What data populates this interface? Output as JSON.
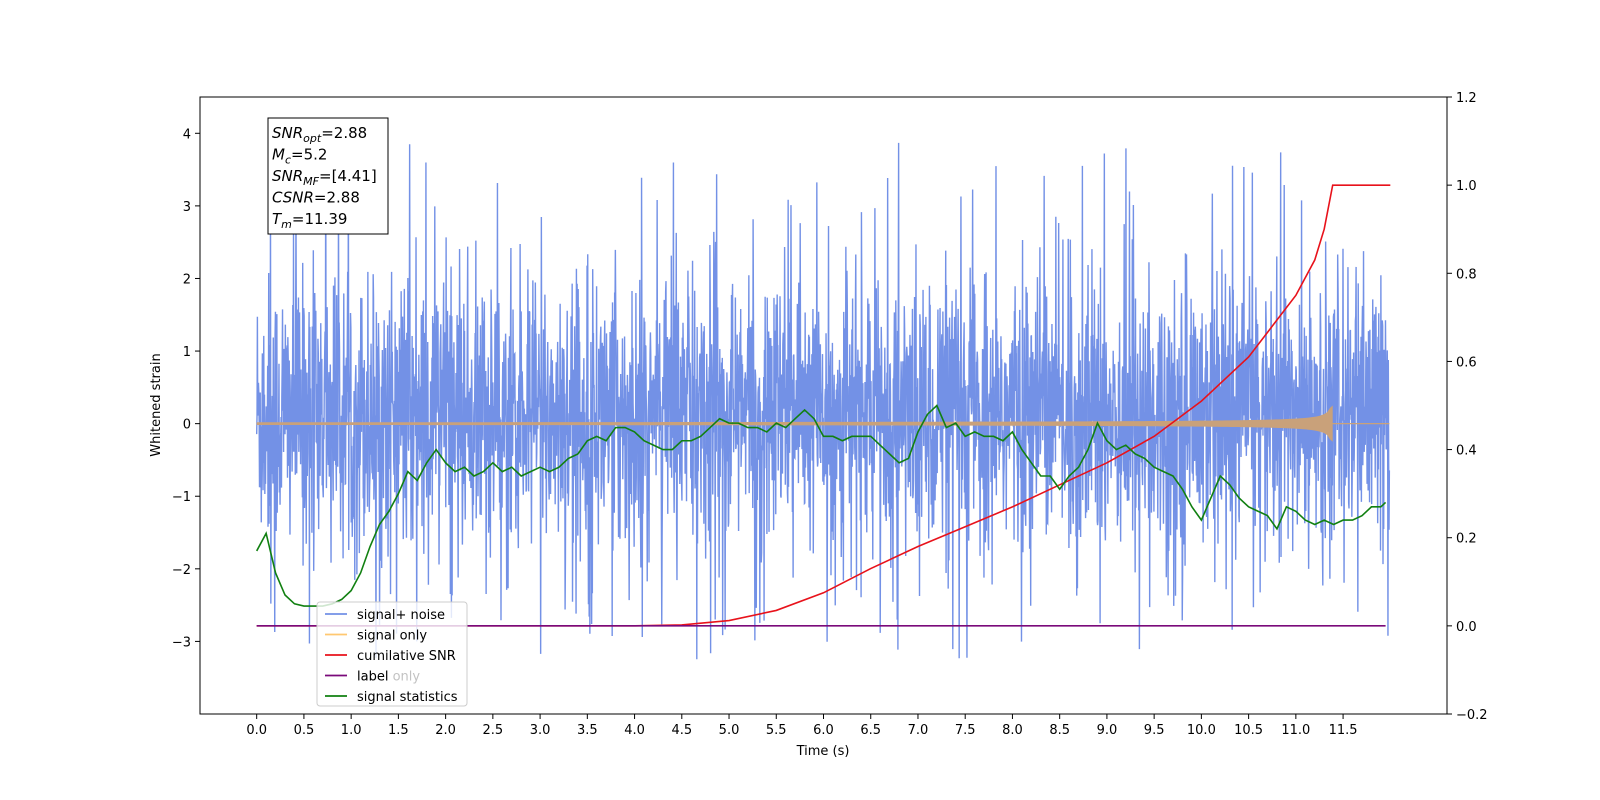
{
  "chart_data": {
    "type": "line",
    "xlabel": "Time (s)",
    "ylabel": "Whitened strain",
    "xlim": [
      -0.6,
      12.6
    ],
    "ylim": [
      -4.0,
      4.5
    ],
    "y2lim": [
      -0.2,
      1.2
    ],
    "x_ticks": [
      "0.0",
      "0.5",
      "1.0",
      "1.5",
      "2.0",
      "2.5",
      "3.0",
      "3.5",
      "4.0",
      "4.5",
      "5.0",
      "5.5",
      "6.0",
      "6.5",
      "7.0",
      "7.5",
      "8.0",
      "8.5",
      "9.0",
      "9.5",
      "10.0",
      "10.5",
      "11.0",
      "11.5"
    ],
    "y_ticks": [
      "−3",
      "−2",
      "−1",
      "0",
      "1",
      "2",
      "3",
      "4"
    ],
    "y2_ticks": [
      "−0.2",
      "0.0",
      "0.2",
      "0.4",
      "0.6",
      "0.8",
      "1.0",
      "1.2"
    ],
    "grid": false,
    "legend_position": "lower-left",
    "annotation": [
      {
        "main": "SNR",
        "sub": "opt",
        "value": "=2.88"
      },
      {
        "main": "M",
        "sub": "c",
        "value": "=5.2"
      },
      {
        "main": "SNR",
        "sub": "MF",
        "value": "=[4.41]"
      },
      {
        "main": "CSNR",
        "sub": "",
        "value": "=2.88"
      },
      {
        "main": "T",
        "sub": "m",
        "value": "=11.39"
      }
    ],
    "series": [
      {
        "name": "signal+ noise",
        "axis": "left",
        "color": "#7391e6",
        "description_range": [
          -3.35,
          4.12
        ],
        "x_range": [
          0.0,
          11.99
        ]
      },
      {
        "name": "signal only",
        "axis": "left",
        "color": "#c9a17a",
        "x_range": [
          0.0,
          11.99
        ],
        "peak_time": 11.39,
        "peak_amplitude": 0.25
      },
      {
        "name": "cumilative SNR",
        "axis": "right",
        "color": "#e8121b",
        "x": [
          0.0,
          4.0,
          4.5,
          5.0,
          5.5,
          6.0,
          6.5,
          7.0,
          7.5,
          8.0,
          8.5,
          9.0,
          9.5,
          10.0,
          10.5,
          11.0,
          11.2,
          11.3,
          11.39,
          12.0
        ],
        "values": [
          0.0,
          0.0,
          0.002,
          0.012,
          0.035,
          0.075,
          0.13,
          0.18,
          0.225,
          0.27,
          0.32,
          0.37,
          0.43,
          0.51,
          0.61,
          0.75,
          0.83,
          0.9,
          1.0,
          1.0
        ]
      },
      {
        "name": "label",
        "axis": "right",
        "color": "#7a0a7a",
        "x": [
          0.0,
          11.95
        ],
        "values": [
          0.0,
          0.0
        ]
      },
      {
        "name": "label only",
        "axis": "right",
        "color": "#c8c8c8",
        "x": [],
        "values": []
      },
      {
        "name": "signal statistics",
        "axis": "right",
        "color": "#118011",
        "x": [
          0.0,
          0.1,
          0.2,
          0.3,
          0.4,
          0.5,
          0.6,
          0.7,
          0.8,
          0.9,
          1.0,
          1.1,
          1.2,
          1.3,
          1.4,
          1.5,
          1.6,
          1.7,
          1.8,
          1.9,
          2.0,
          2.1,
          2.2,
          2.3,
          2.4,
          2.5,
          2.6,
          2.7,
          2.8,
          2.9,
          3.0,
          3.1,
          3.2,
          3.3,
          3.4,
          3.5,
          3.6,
          3.7,
          3.8,
          3.9,
          4.0,
          4.1,
          4.2,
          4.3,
          4.4,
          4.5,
          4.6,
          4.7,
          4.8,
          4.9,
          5.0,
          5.1,
          5.2,
          5.3,
          5.4,
          5.5,
          5.6,
          5.7,
          5.8,
          5.9,
          6.0,
          6.1,
          6.2,
          6.3,
          6.4,
          6.5,
          6.6,
          6.7,
          6.8,
          6.9,
          7.0,
          7.1,
          7.2,
          7.3,
          7.4,
          7.5,
          7.6,
          7.7,
          7.8,
          7.9,
          8.0,
          8.1,
          8.2,
          8.3,
          8.4,
          8.5,
          8.6,
          8.7,
          8.8,
          8.9,
          9.0,
          9.1,
          9.2,
          9.3,
          9.4,
          9.5,
          9.6,
          9.7,
          9.8,
          9.9,
          10.0,
          10.1,
          10.2,
          10.3,
          10.4,
          10.5,
          10.6,
          10.7,
          10.8,
          10.9,
          11.0,
          11.1,
          11.2,
          11.3,
          11.4,
          11.5,
          11.6,
          11.7,
          11.8,
          11.9,
          11.95
        ],
        "values": [
          0.17,
          0.21,
          0.12,
          0.07,
          0.05,
          0.045,
          0.045,
          0.045,
          0.05,
          0.06,
          0.08,
          0.12,
          0.18,
          0.23,
          0.26,
          0.3,
          0.35,
          0.33,
          0.37,
          0.4,
          0.37,
          0.35,
          0.36,
          0.34,
          0.35,
          0.37,
          0.35,
          0.36,
          0.34,
          0.35,
          0.36,
          0.35,
          0.36,
          0.38,
          0.39,
          0.42,
          0.43,
          0.42,
          0.45,
          0.45,
          0.44,
          0.42,
          0.41,
          0.4,
          0.4,
          0.42,
          0.42,
          0.43,
          0.45,
          0.47,
          0.46,
          0.46,
          0.45,
          0.45,
          0.44,
          0.46,
          0.45,
          0.47,
          0.49,
          0.47,
          0.43,
          0.43,
          0.42,
          0.43,
          0.43,
          0.43,
          0.41,
          0.39,
          0.37,
          0.38,
          0.44,
          0.48,
          0.5,
          0.45,
          0.46,
          0.43,
          0.44,
          0.43,
          0.43,
          0.42,
          0.44,
          0.4,
          0.37,
          0.34,
          0.34,
          0.31,
          0.34,
          0.36,
          0.4,
          0.46,
          0.42,
          0.4,
          0.41,
          0.39,
          0.38,
          0.36,
          0.35,
          0.34,
          0.31,
          0.27,
          0.24,
          0.29,
          0.34,
          0.32,
          0.29,
          0.27,
          0.26,
          0.25,
          0.22,
          0.27,
          0.26,
          0.24,
          0.23,
          0.24,
          0.23,
          0.24,
          0.24,
          0.25,
          0.27,
          0.27,
          0.28
        ]
      }
    ]
  }
}
